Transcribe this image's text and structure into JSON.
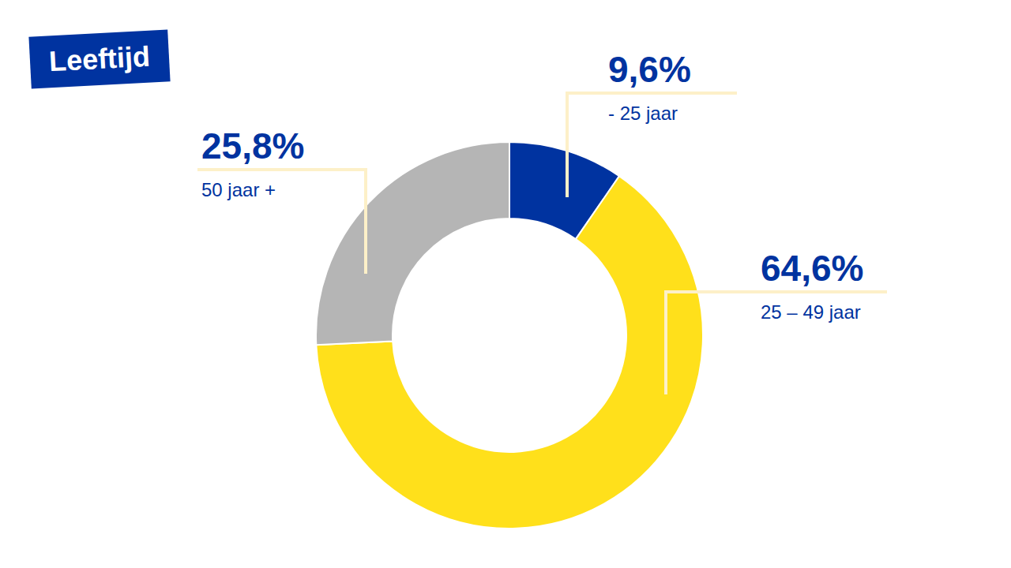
{
  "chart_data": {
    "type": "pie",
    "title": "Leeftijd",
    "categories": [
      "- 25 jaar",
      "25 – 49 jaar",
      "50 jaar +"
    ],
    "values": [
      9.6,
      64.6,
      25.8
    ],
    "value_labels": [
      "9,6%",
      "64,6%",
      "25,8%"
    ],
    "colors": [
      "#0033a0",
      "#ffe01b",
      "#b5b5b5"
    ],
    "data_labels": true
  }
}
